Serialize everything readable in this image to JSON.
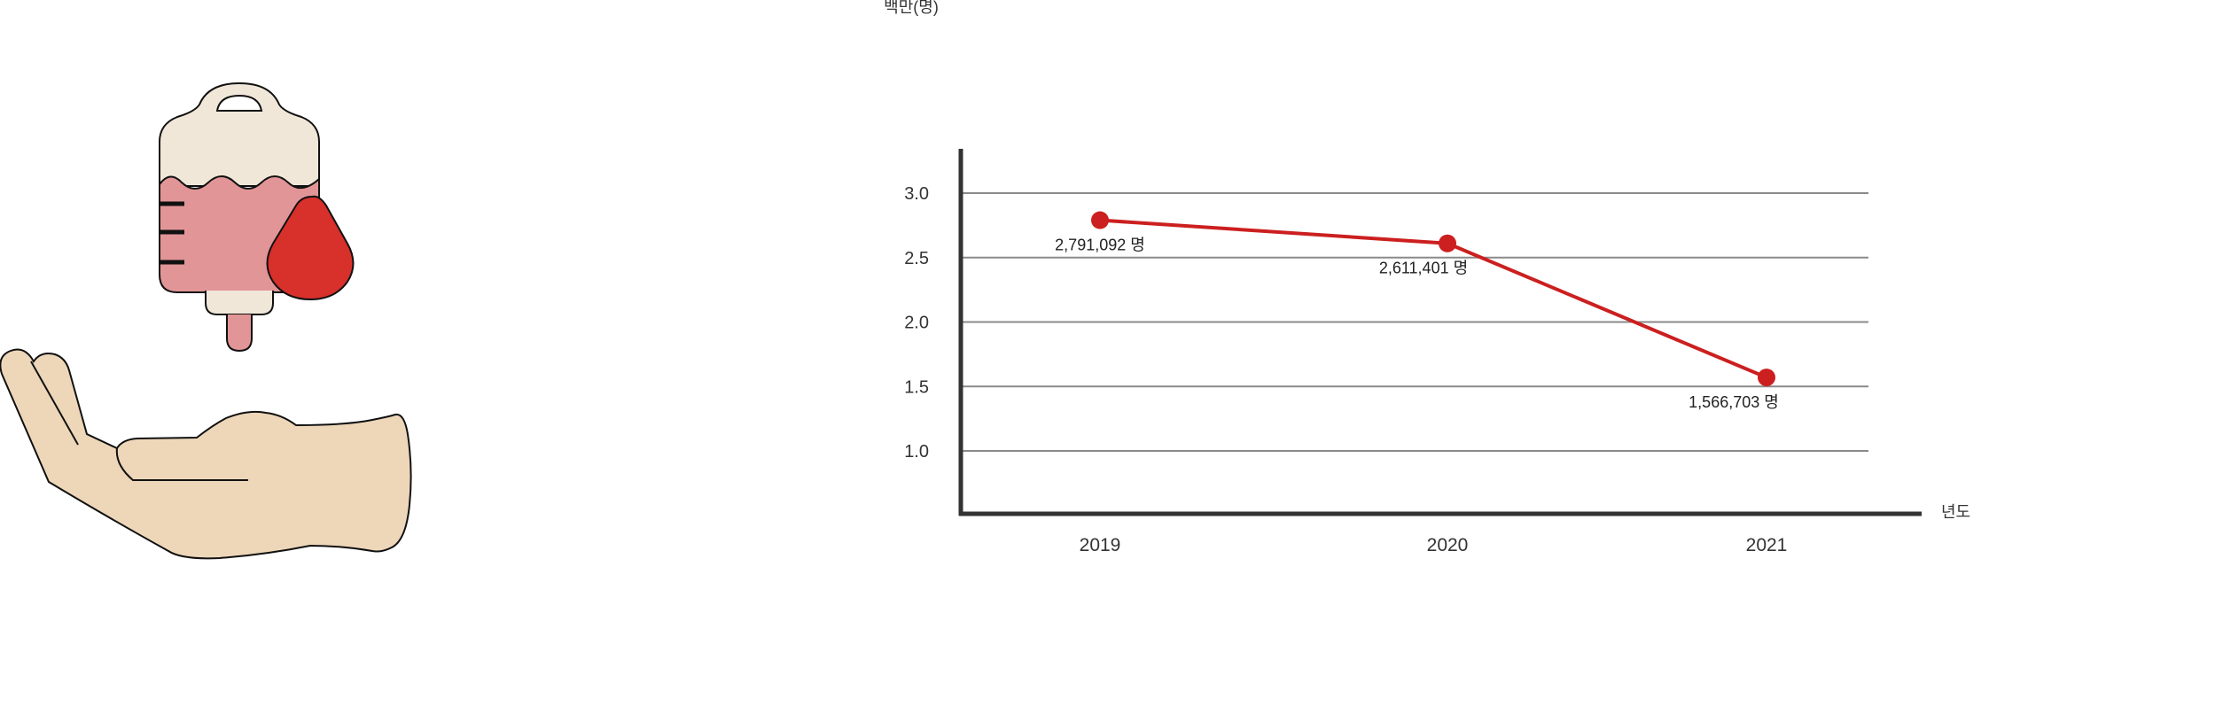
{
  "illustration": {
    "icon": "blood-donation-hand-icon",
    "colors": {
      "bag_top": "#f1e7d9",
      "bag_blood": "#e29597",
      "drop": "#d8302b",
      "hand": "#eed6b9",
      "outline": "#111111"
    }
  },
  "chart_data": {
    "type": "line",
    "title": "",
    "ylabel": "백만(명)",
    "xlabel": "년도",
    "categories": [
      "2019",
      "2020",
      "2021"
    ],
    "yticks": [
      "3.0",
      "2.5",
      "2.0",
      "1.5",
      "1.0"
    ],
    "ylim": [
      0.5,
      3.25
    ],
    "grid": true,
    "series": [
      {
        "values": [
          2.79,
          2.61,
          1.57
        ],
        "labels": [
          "2,791,092 명",
          "2,611,401 명",
          "1,566,703 명"
        ],
        "color": "#cc1f1f"
      }
    ]
  }
}
